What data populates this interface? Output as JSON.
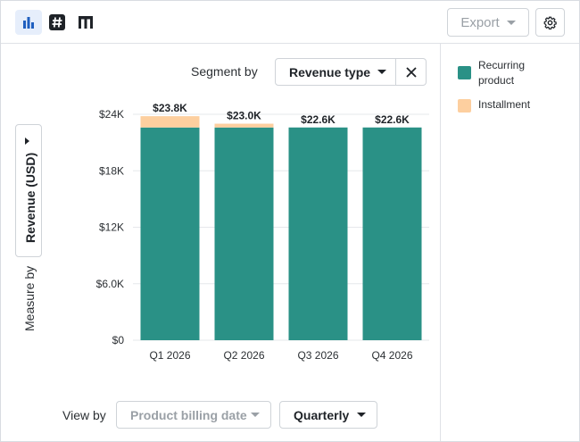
{
  "toolbar": {
    "export_label": "Export"
  },
  "segment": {
    "label": "Segment by",
    "value": "Revenue type"
  },
  "measure": {
    "label": "Measure by",
    "value": "Revenue (USD)"
  },
  "view": {
    "label": "View by",
    "date_field": "Product billing date",
    "period": "Quarterly"
  },
  "colors": {
    "recurring": "#2a9186",
    "installment": "#fdcf9f",
    "grid": "#e6e8eb",
    "axis_text": "#2b2f33",
    "active_icon": "#1f5fbf"
  },
  "legend": [
    {
      "label": "Recurring product",
      "color": "#2a9186"
    },
    {
      "label": "Installment",
      "color": "#fdcf9f"
    }
  ],
  "chart_data": {
    "type": "bar",
    "stacked": true,
    "categories": [
      "Q1 2026",
      "Q2 2026",
      "Q3 2026",
      "Q4 2026"
    ],
    "series": [
      {
        "name": "Recurring product",
        "values": [
          22600,
          22600,
          22600,
          22600
        ]
      },
      {
        "name": "Installment",
        "values": [
          1200,
          400,
          0,
          0
        ]
      }
    ],
    "totals_labels": [
      "$23.8K",
      "$23.0K",
      "$22.6K",
      "$22.6K"
    ],
    "y_ticks": [
      0,
      6000,
      12000,
      18000,
      24000
    ],
    "y_tick_labels": [
      "$0",
      "$6.0K",
      "$12K",
      "$18K",
      "$24K"
    ],
    "ylim": [
      0,
      24000
    ],
    "xlabel": "",
    "ylabel": "",
    "grid": true,
    "legend_position": "right"
  }
}
